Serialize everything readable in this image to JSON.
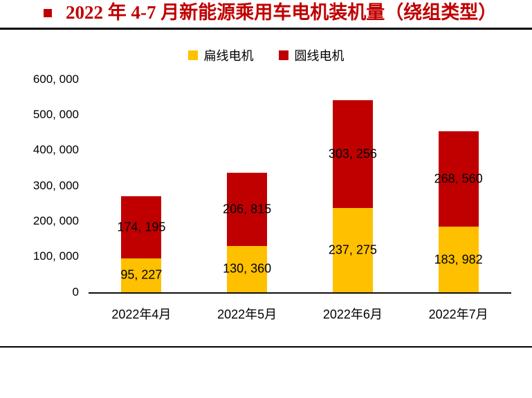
{
  "title": {
    "text": "2022 年 4-7 月新能源乘用车电机装机量（绕组类型）"
  },
  "colors": {
    "title_red": "#C00000",
    "flat_wire_yellow": "#FFC000",
    "round_wire_red": "#C00000",
    "axis_line": "#0d0d0d"
  },
  "chart_data": {
    "type": "bar",
    "stacked": true,
    "title": "2022 年 4-7 月新能源乘用车电机装机量（绕组类型）",
    "categories": [
      "2022年4月",
      "2022年5月",
      "2022年6月",
      "2022年7月"
    ],
    "series": [
      {
        "name": "扁线电机",
        "color": "#FFC000",
        "values": [
          95227,
          130360,
          237275,
          183982
        ],
        "data_labels": [
          "95, 227",
          "130, 360",
          "237, 275",
          "183, 982"
        ]
      },
      {
        "name": "圆线电机",
        "color": "#C00000",
        "values": [
          174195,
          206815,
          303256,
          268560
        ],
        "data_labels": [
          "174, 195",
          "206, 815",
          "303, 256",
          "268, 560"
        ]
      }
    ],
    "totals": [
      269422,
      337175,
      540531,
      452542
    ],
    "xlabel": "",
    "ylabel": "",
    "ylim": [
      0,
      600000
    ],
    "ytick_step": 100000,
    "ytick_labels": [
      "0",
      "100, 000",
      "200, 000",
      "300, 000",
      "400, 000",
      "500, 000",
      "600, 000"
    ],
    "legend_position": "top",
    "grid": false
  }
}
